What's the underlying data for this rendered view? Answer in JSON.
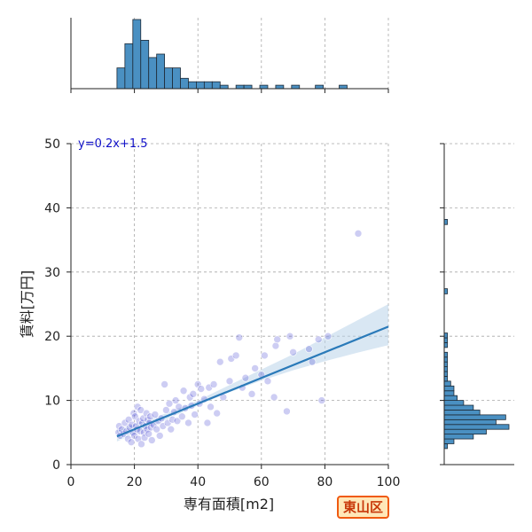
{
  "ward_label": "東山区",
  "colors": {
    "regression_line": "#2a7ab9",
    "confidence_band": "#bad3ea",
    "scatter_points": "#5b5bd6",
    "histogram_fill": "#4a90c2",
    "ward_badge_fill": "#ffe7b8",
    "ward_badge_border": "#f05a10",
    "equation_text": "#1010c8"
  },
  "chart_data": {
    "type": "scatter",
    "xlabel": "専有面積[m2]",
    "ylabel": "賃料[万円]",
    "xlim": [
      0,
      100
    ],
    "ylim": [
      0,
      50
    ],
    "xticks": [
      0,
      20,
      40,
      60,
      80,
      100
    ],
    "yticks": [
      0,
      10,
      20,
      30,
      40,
      50
    ],
    "grid": true,
    "equation_label": "y=0.2x+1.5",
    "regression": {
      "slope": 0.2,
      "intercept": 1.5,
      "x_range": [
        14.5,
        100
      ]
    },
    "confidence_band": {
      "x": [
        14.5,
        20,
        30,
        40,
        50,
        60,
        70,
        80,
        90,
        100
      ],
      "lower": [
        3.6,
        4.8,
        7.0,
        9.2,
        11.3,
        13.1,
        14.7,
        16.1,
        17.4,
        18.6
      ],
      "upper": [
        5.4,
        6.3,
        8.0,
        10.0,
        12.4,
        14.8,
        17.2,
        19.8,
        22.4,
        25.0
      ]
    },
    "points": [
      [
        15.0,
        5.0
      ],
      [
        15.2,
        6.0
      ],
      [
        15.5,
        4.5
      ],
      [
        16.0,
        5.5
      ],
      [
        16.5,
        4.8
      ],
      [
        17.0,
        6.5
      ],
      [
        17.5,
        5.2
      ],
      [
        18.0,
        4.0
      ],
      [
        18.2,
        7.0
      ],
      [
        18.5,
        5.8
      ],
      [
        19.0,
        3.5
      ],
      [
        19.2,
        6.2
      ],
      [
        19.5,
        5.0
      ],
      [
        19.8,
        8.0
      ],
      [
        20.0,
        4.5
      ],
      [
        20.2,
        7.5
      ],
      [
        20.5,
        6.0
      ],
      [
        20.8,
        5.5
      ],
      [
        21.0,
        9.0
      ],
      [
        21.2,
        4.0
      ],
      [
        21.5,
        6.8
      ],
      [
        21.8,
        5.2
      ],
      [
        22.0,
        8.5
      ],
      [
        22.2,
        3.2
      ],
      [
        22.5,
        6.5
      ],
      [
        22.8,
        7.2
      ],
      [
        23.0,
        5.0
      ],
      [
        23.2,
        4.2
      ],
      [
        23.5,
        6.0
      ],
      [
        23.8,
        8.0
      ],
      [
        24.0,
        5.5
      ],
      [
        24.2,
        7.0
      ],
      [
        24.5,
        4.8
      ],
      [
        24.8,
        6.5
      ],
      [
        25.0,
        7.5
      ],
      [
        25.2,
        5.8
      ],
      [
        25.5,
        3.8
      ],
      [
        26.0,
        6.2
      ],
      [
        26.5,
        7.8
      ],
      [
        27.0,
        5.5
      ],
      [
        27.5,
        6.8
      ],
      [
        28.0,
        4.5
      ],
      [
        28.5,
        7.2
      ],
      [
        29.0,
        6.0
      ],
      [
        29.5,
        12.5
      ],
      [
        30.0,
        8.5
      ],
      [
        30.5,
        6.5
      ],
      [
        31.0,
        9.5
      ],
      [
        31.5,
        5.5
      ],
      [
        32.0,
        7.0
      ],
      [
        32.5,
        8.2
      ],
      [
        33.0,
        10.0
      ],
      [
        33.5,
        6.8
      ],
      [
        34.0,
        9.0
      ],
      [
        35.0,
        7.5
      ],
      [
        35.5,
        11.5
      ],
      [
        36.0,
        8.8
      ],
      [
        37.0,
        6.5
      ],
      [
        37.5,
        10.5
      ],
      [
        38.0,
        9.2
      ],
      [
        38.5,
        11.0
      ],
      [
        39.0,
        7.8
      ],
      [
        40.0,
        12.5
      ],
      [
        40.5,
        9.5
      ],
      [
        41.0,
        11.8
      ],
      [
        42.0,
        10.2
      ],
      [
        43.0,
        6.5
      ],
      [
        43.5,
        12.0
      ],
      [
        44.0,
        9.0
      ],
      [
        45.0,
        12.5
      ],
      [
        46.0,
        8.0
      ],
      [
        47.0,
        16.0
      ],
      [
        48.0,
        10.5
      ],
      [
        50.0,
        13.0
      ],
      [
        50.5,
        16.5
      ],
      [
        52.0,
        17.0
      ],
      [
        53.0,
        19.8
      ],
      [
        54.0,
        12.0
      ],
      [
        55.0,
        13.5
      ],
      [
        57.0,
        11.0
      ],
      [
        58.0,
        15.0
      ],
      [
        60.0,
        14.0
      ],
      [
        61.0,
        17.0
      ],
      [
        62.0,
        13.0
      ],
      [
        64.0,
        10.5
      ],
      [
        64.5,
        18.5
      ],
      [
        65.0,
        19.5
      ],
      [
        68.0,
        8.3
      ],
      [
        69.0,
        20.0
      ],
      [
        70.0,
        17.5
      ],
      [
        75.0,
        18.0
      ],
      [
        76.0,
        16.0
      ],
      [
        78.0,
        19.5
      ],
      [
        79.0,
        10.0
      ],
      [
        81.0,
        20.0
      ],
      [
        90.5,
        36.0
      ]
    ],
    "x_histogram": {
      "bin_edges": [
        14.5,
        17,
        19.5,
        22,
        24.5,
        27,
        29.5,
        32,
        34.5,
        37,
        39.5,
        42,
        44.5,
        47,
        49.5,
        52,
        54.5,
        57,
        59.5,
        62,
        64.5,
        67,
        69.5,
        72,
        74.5,
        77,
        79.5,
        82,
        84.5,
        87,
        89.5,
        92
      ],
      "counts": [
        6,
        13,
        20,
        14,
        9,
        10,
        6,
        6,
        3,
        2,
        2,
        2,
        2,
        1,
        0,
        1,
        1,
        0,
        1,
        0,
        1,
        0,
        1,
        0,
        0,
        1,
        0,
        0,
        1,
        0,
        0
      ]
    },
    "y_histogram": {
      "bin_edges": [
        2.5,
        3.25,
        4,
        4.75,
        5.5,
        6.25,
        7,
        7.75,
        8.5,
        9.25,
        10,
        10.75,
        11.5,
        12.25,
        13,
        13.75,
        14.5,
        15.25,
        16,
        16.75,
        17.5,
        18.25,
        19,
        19.75,
        20.5
      ],
      "counts": [
        1,
        3,
        9,
        13,
        20,
        16,
        19,
        11,
        9,
        6,
        4,
        3,
        3,
        2,
        1,
        1,
        1,
        1,
        1,
        1,
        0,
        1,
        1,
        1
      ]
    },
    "y_histogram_extra": [
      {
        "y": 27.0,
        "count": 1
      },
      {
        "y": 37.8,
        "count": 1
      }
    ]
  }
}
